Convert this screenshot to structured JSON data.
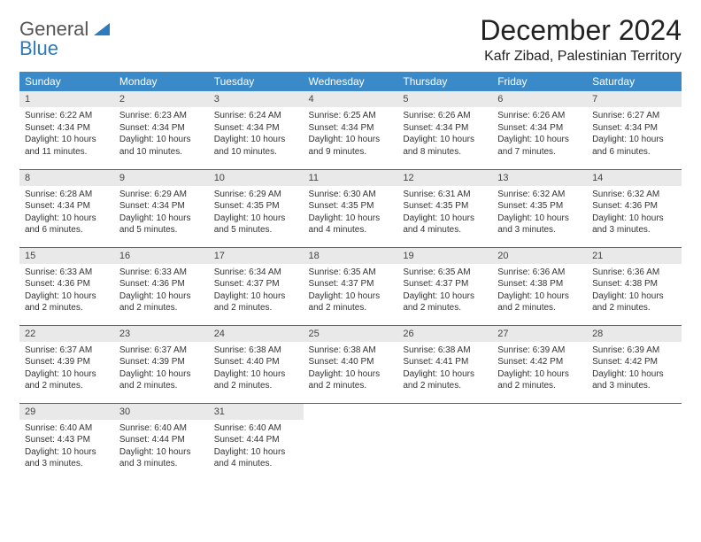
{
  "logo": {
    "line1": "General",
    "line2": "Blue"
  },
  "title": "December 2024",
  "location": "Kafr Zibad, Palestinian Territory",
  "colors": {
    "header_bg": "#3a8ac9",
    "header_text": "#ffffff",
    "daynum_bg": "#e9e9e9",
    "row_border": "#3a6a9a",
    "logo_accent": "#2b7bbd"
  },
  "weekdays": [
    "Sunday",
    "Monday",
    "Tuesday",
    "Wednesday",
    "Thursday",
    "Friday",
    "Saturday"
  ],
  "weeks": [
    [
      {
        "day": "1",
        "sunrise": "Sunrise: 6:22 AM",
        "sunset": "Sunset: 4:34 PM",
        "daylight": "Daylight: 10 hours and 11 minutes."
      },
      {
        "day": "2",
        "sunrise": "Sunrise: 6:23 AM",
        "sunset": "Sunset: 4:34 PM",
        "daylight": "Daylight: 10 hours and 10 minutes."
      },
      {
        "day": "3",
        "sunrise": "Sunrise: 6:24 AM",
        "sunset": "Sunset: 4:34 PM",
        "daylight": "Daylight: 10 hours and 10 minutes."
      },
      {
        "day": "4",
        "sunrise": "Sunrise: 6:25 AM",
        "sunset": "Sunset: 4:34 PM",
        "daylight": "Daylight: 10 hours and 9 minutes."
      },
      {
        "day": "5",
        "sunrise": "Sunrise: 6:26 AM",
        "sunset": "Sunset: 4:34 PM",
        "daylight": "Daylight: 10 hours and 8 minutes."
      },
      {
        "day": "6",
        "sunrise": "Sunrise: 6:26 AM",
        "sunset": "Sunset: 4:34 PM",
        "daylight": "Daylight: 10 hours and 7 minutes."
      },
      {
        "day": "7",
        "sunrise": "Sunrise: 6:27 AM",
        "sunset": "Sunset: 4:34 PM",
        "daylight": "Daylight: 10 hours and 6 minutes."
      }
    ],
    [
      {
        "day": "8",
        "sunrise": "Sunrise: 6:28 AM",
        "sunset": "Sunset: 4:34 PM",
        "daylight": "Daylight: 10 hours and 6 minutes."
      },
      {
        "day": "9",
        "sunrise": "Sunrise: 6:29 AM",
        "sunset": "Sunset: 4:34 PM",
        "daylight": "Daylight: 10 hours and 5 minutes."
      },
      {
        "day": "10",
        "sunrise": "Sunrise: 6:29 AM",
        "sunset": "Sunset: 4:35 PM",
        "daylight": "Daylight: 10 hours and 5 minutes."
      },
      {
        "day": "11",
        "sunrise": "Sunrise: 6:30 AM",
        "sunset": "Sunset: 4:35 PM",
        "daylight": "Daylight: 10 hours and 4 minutes."
      },
      {
        "day": "12",
        "sunrise": "Sunrise: 6:31 AM",
        "sunset": "Sunset: 4:35 PM",
        "daylight": "Daylight: 10 hours and 4 minutes."
      },
      {
        "day": "13",
        "sunrise": "Sunrise: 6:32 AM",
        "sunset": "Sunset: 4:35 PM",
        "daylight": "Daylight: 10 hours and 3 minutes."
      },
      {
        "day": "14",
        "sunrise": "Sunrise: 6:32 AM",
        "sunset": "Sunset: 4:36 PM",
        "daylight": "Daylight: 10 hours and 3 minutes."
      }
    ],
    [
      {
        "day": "15",
        "sunrise": "Sunrise: 6:33 AM",
        "sunset": "Sunset: 4:36 PM",
        "daylight": "Daylight: 10 hours and 2 minutes."
      },
      {
        "day": "16",
        "sunrise": "Sunrise: 6:33 AM",
        "sunset": "Sunset: 4:36 PM",
        "daylight": "Daylight: 10 hours and 2 minutes."
      },
      {
        "day": "17",
        "sunrise": "Sunrise: 6:34 AM",
        "sunset": "Sunset: 4:37 PM",
        "daylight": "Daylight: 10 hours and 2 minutes."
      },
      {
        "day": "18",
        "sunrise": "Sunrise: 6:35 AM",
        "sunset": "Sunset: 4:37 PM",
        "daylight": "Daylight: 10 hours and 2 minutes."
      },
      {
        "day": "19",
        "sunrise": "Sunrise: 6:35 AM",
        "sunset": "Sunset: 4:37 PM",
        "daylight": "Daylight: 10 hours and 2 minutes."
      },
      {
        "day": "20",
        "sunrise": "Sunrise: 6:36 AM",
        "sunset": "Sunset: 4:38 PM",
        "daylight": "Daylight: 10 hours and 2 minutes."
      },
      {
        "day": "21",
        "sunrise": "Sunrise: 6:36 AM",
        "sunset": "Sunset: 4:38 PM",
        "daylight": "Daylight: 10 hours and 2 minutes."
      }
    ],
    [
      {
        "day": "22",
        "sunrise": "Sunrise: 6:37 AM",
        "sunset": "Sunset: 4:39 PM",
        "daylight": "Daylight: 10 hours and 2 minutes."
      },
      {
        "day": "23",
        "sunrise": "Sunrise: 6:37 AM",
        "sunset": "Sunset: 4:39 PM",
        "daylight": "Daylight: 10 hours and 2 minutes."
      },
      {
        "day": "24",
        "sunrise": "Sunrise: 6:38 AM",
        "sunset": "Sunset: 4:40 PM",
        "daylight": "Daylight: 10 hours and 2 minutes."
      },
      {
        "day": "25",
        "sunrise": "Sunrise: 6:38 AM",
        "sunset": "Sunset: 4:40 PM",
        "daylight": "Daylight: 10 hours and 2 minutes."
      },
      {
        "day": "26",
        "sunrise": "Sunrise: 6:38 AM",
        "sunset": "Sunset: 4:41 PM",
        "daylight": "Daylight: 10 hours and 2 minutes."
      },
      {
        "day": "27",
        "sunrise": "Sunrise: 6:39 AM",
        "sunset": "Sunset: 4:42 PM",
        "daylight": "Daylight: 10 hours and 2 minutes."
      },
      {
        "day": "28",
        "sunrise": "Sunrise: 6:39 AM",
        "sunset": "Sunset: 4:42 PM",
        "daylight": "Daylight: 10 hours and 3 minutes."
      }
    ],
    [
      {
        "day": "29",
        "sunrise": "Sunrise: 6:40 AM",
        "sunset": "Sunset: 4:43 PM",
        "daylight": "Daylight: 10 hours and 3 minutes."
      },
      {
        "day": "30",
        "sunrise": "Sunrise: 6:40 AM",
        "sunset": "Sunset: 4:44 PM",
        "daylight": "Daylight: 10 hours and 3 minutes."
      },
      {
        "day": "31",
        "sunrise": "Sunrise: 6:40 AM",
        "sunset": "Sunset: 4:44 PM",
        "daylight": "Daylight: 10 hours and 4 minutes."
      },
      null,
      null,
      null,
      null
    ]
  ]
}
